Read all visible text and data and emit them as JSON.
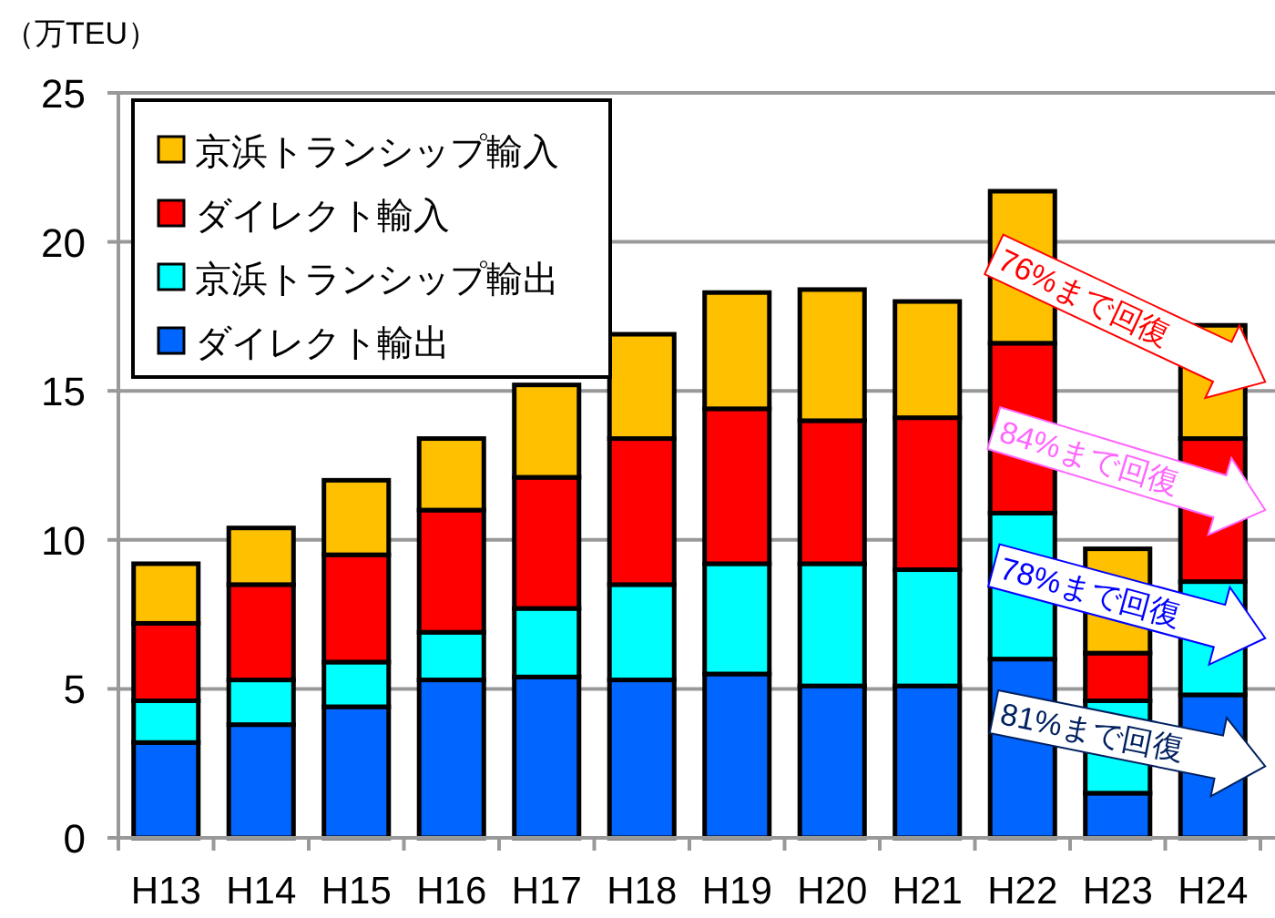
{
  "chart_data": {
    "type": "bar",
    "stacked": true,
    "ylabel": "（万TEU）",
    "categories": [
      "H13",
      "H14",
      "H15",
      "H16",
      "H17",
      "H18",
      "H19",
      "H20",
      "H21",
      "H22",
      "H23",
      "H24"
    ],
    "series": [
      {
        "name": "ダイレクト輸出",
        "color": "#0066ff",
        "values": [
          3.2,
          3.8,
          4.4,
          5.3,
          5.4,
          5.3,
          5.5,
          5.1,
          5.1,
          6.0,
          1.5,
          4.8
        ]
      },
      {
        "name": "京浜トランシップ輸出",
        "color": "#00ffff",
        "values": [
          1.4,
          1.5,
          1.5,
          1.6,
          2.3,
          3.2,
          3.7,
          4.1,
          3.9,
          4.9,
          3.1,
          3.8
        ]
      },
      {
        "name": "ダイレクト輸入",
        "color": "#ff0000",
        "values": [
          2.6,
          3.2,
          3.6,
          4.1,
          4.4,
          4.9,
          5.2,
          4.8,
          5.1,
          5.7,
          1.6,
          4.8
        ]
      },
      {
        "name": "京浜トランシップ輸入",
        "color": "#ffc000",
        "values": [
          2.0,
          1.9,
          2.5,
          2.4,
          3.1,
          3.5,
          3.9,
          4.4,
          3.9,
          5.1,
          3.5,
          3.8
        ]
      }
    ],
    "ylim": [
      0,
      25
    ],
    "yticks": [
      0,
      5,
      10,
      15,
      20,
      25
    ],
    "grid": "y",
    "legend": "top left",
    "annotations": [
      "76%まで回復",
      "84%まで回復",
      "78%まで回復",
      "81%まで回復"
    ]
  }
}
